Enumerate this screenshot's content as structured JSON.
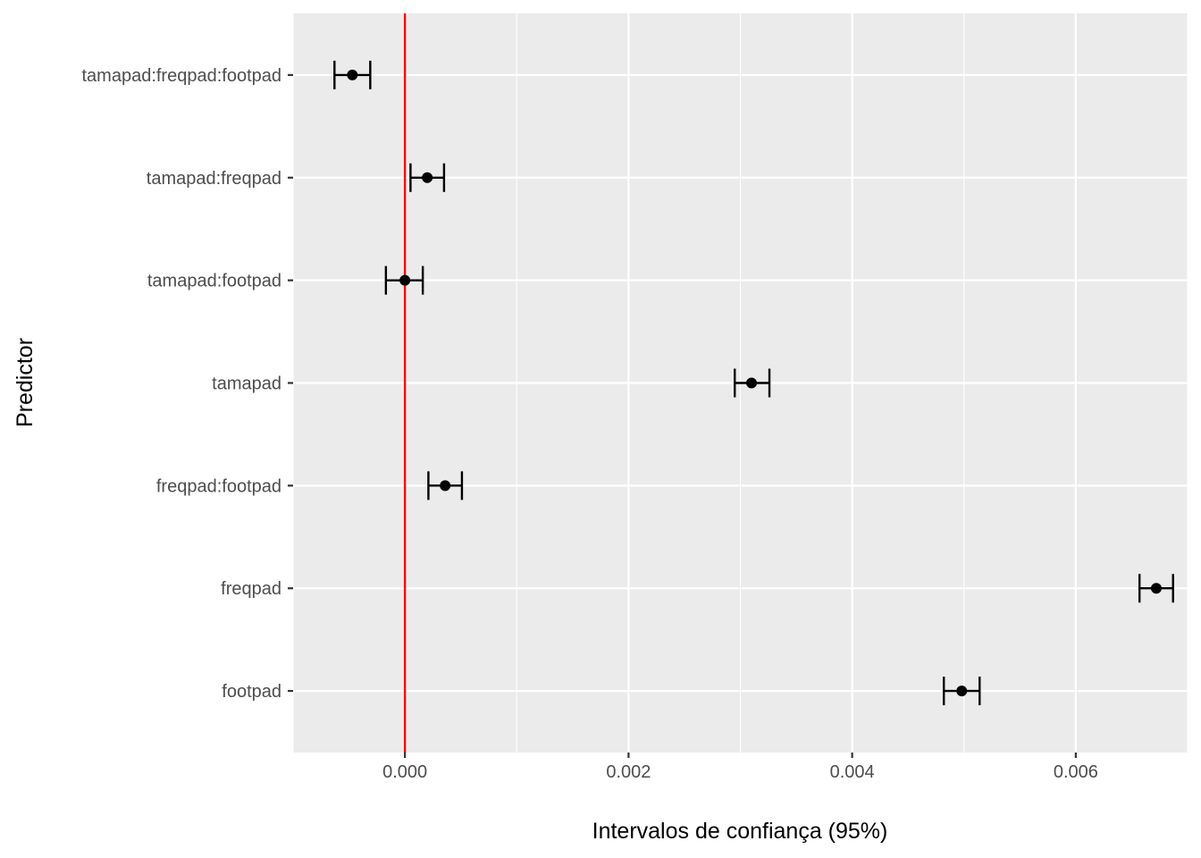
{
  "chart_data": {
    "type": "errorbar",
    "xlabel": "Intervalos de confiança (95%)",
    "ylabel": "Predictor",
    "xlim": [
      -0.001,
      0.007
    ],
    "x_ticks": [
      0.0,
      0.002,
      0.004,
      0.006
    ],
    "x_tick_labels": [
      "0.000",
      "0.002",
      "0.004",
      "0.006"
    ],
    "grid": true,
    "categories": [
      "footpad",
      "freqpad",
      "freqpad:footpad",
      "tamapad",
      "tamapad:footpad",
      "tamapad:freqpad",
      "tamapad:freqpad:footpad"
    ],
    "estimates": [
      0.00498,
      0.00672,
      0.00036,
      0.0031,
      0.0,
      0.0002,
      -0.00047
    ],
    "lower": [
      0.00482,
      0.00657,
      0.00021,
      0.00295,
      -0.00017,
      5e-05,
      -0.00063
    ],
    "upper": [
      0.00514,
      0.00687,
      0.00051,
      0.00326,
      0.00016,
      0.00035,
      -0.00031
    ],
    "reference_line": {
      "x": 0.0,
      "color": "#ff0000"
    },
    "colors": {
      "panel": "#ebebeb",
      "grid": "#ffffff",
      "point": "#000000",
      "errorbar": "#000000",
      "tick_text": "#4d4d4d"
    }
  }
}
